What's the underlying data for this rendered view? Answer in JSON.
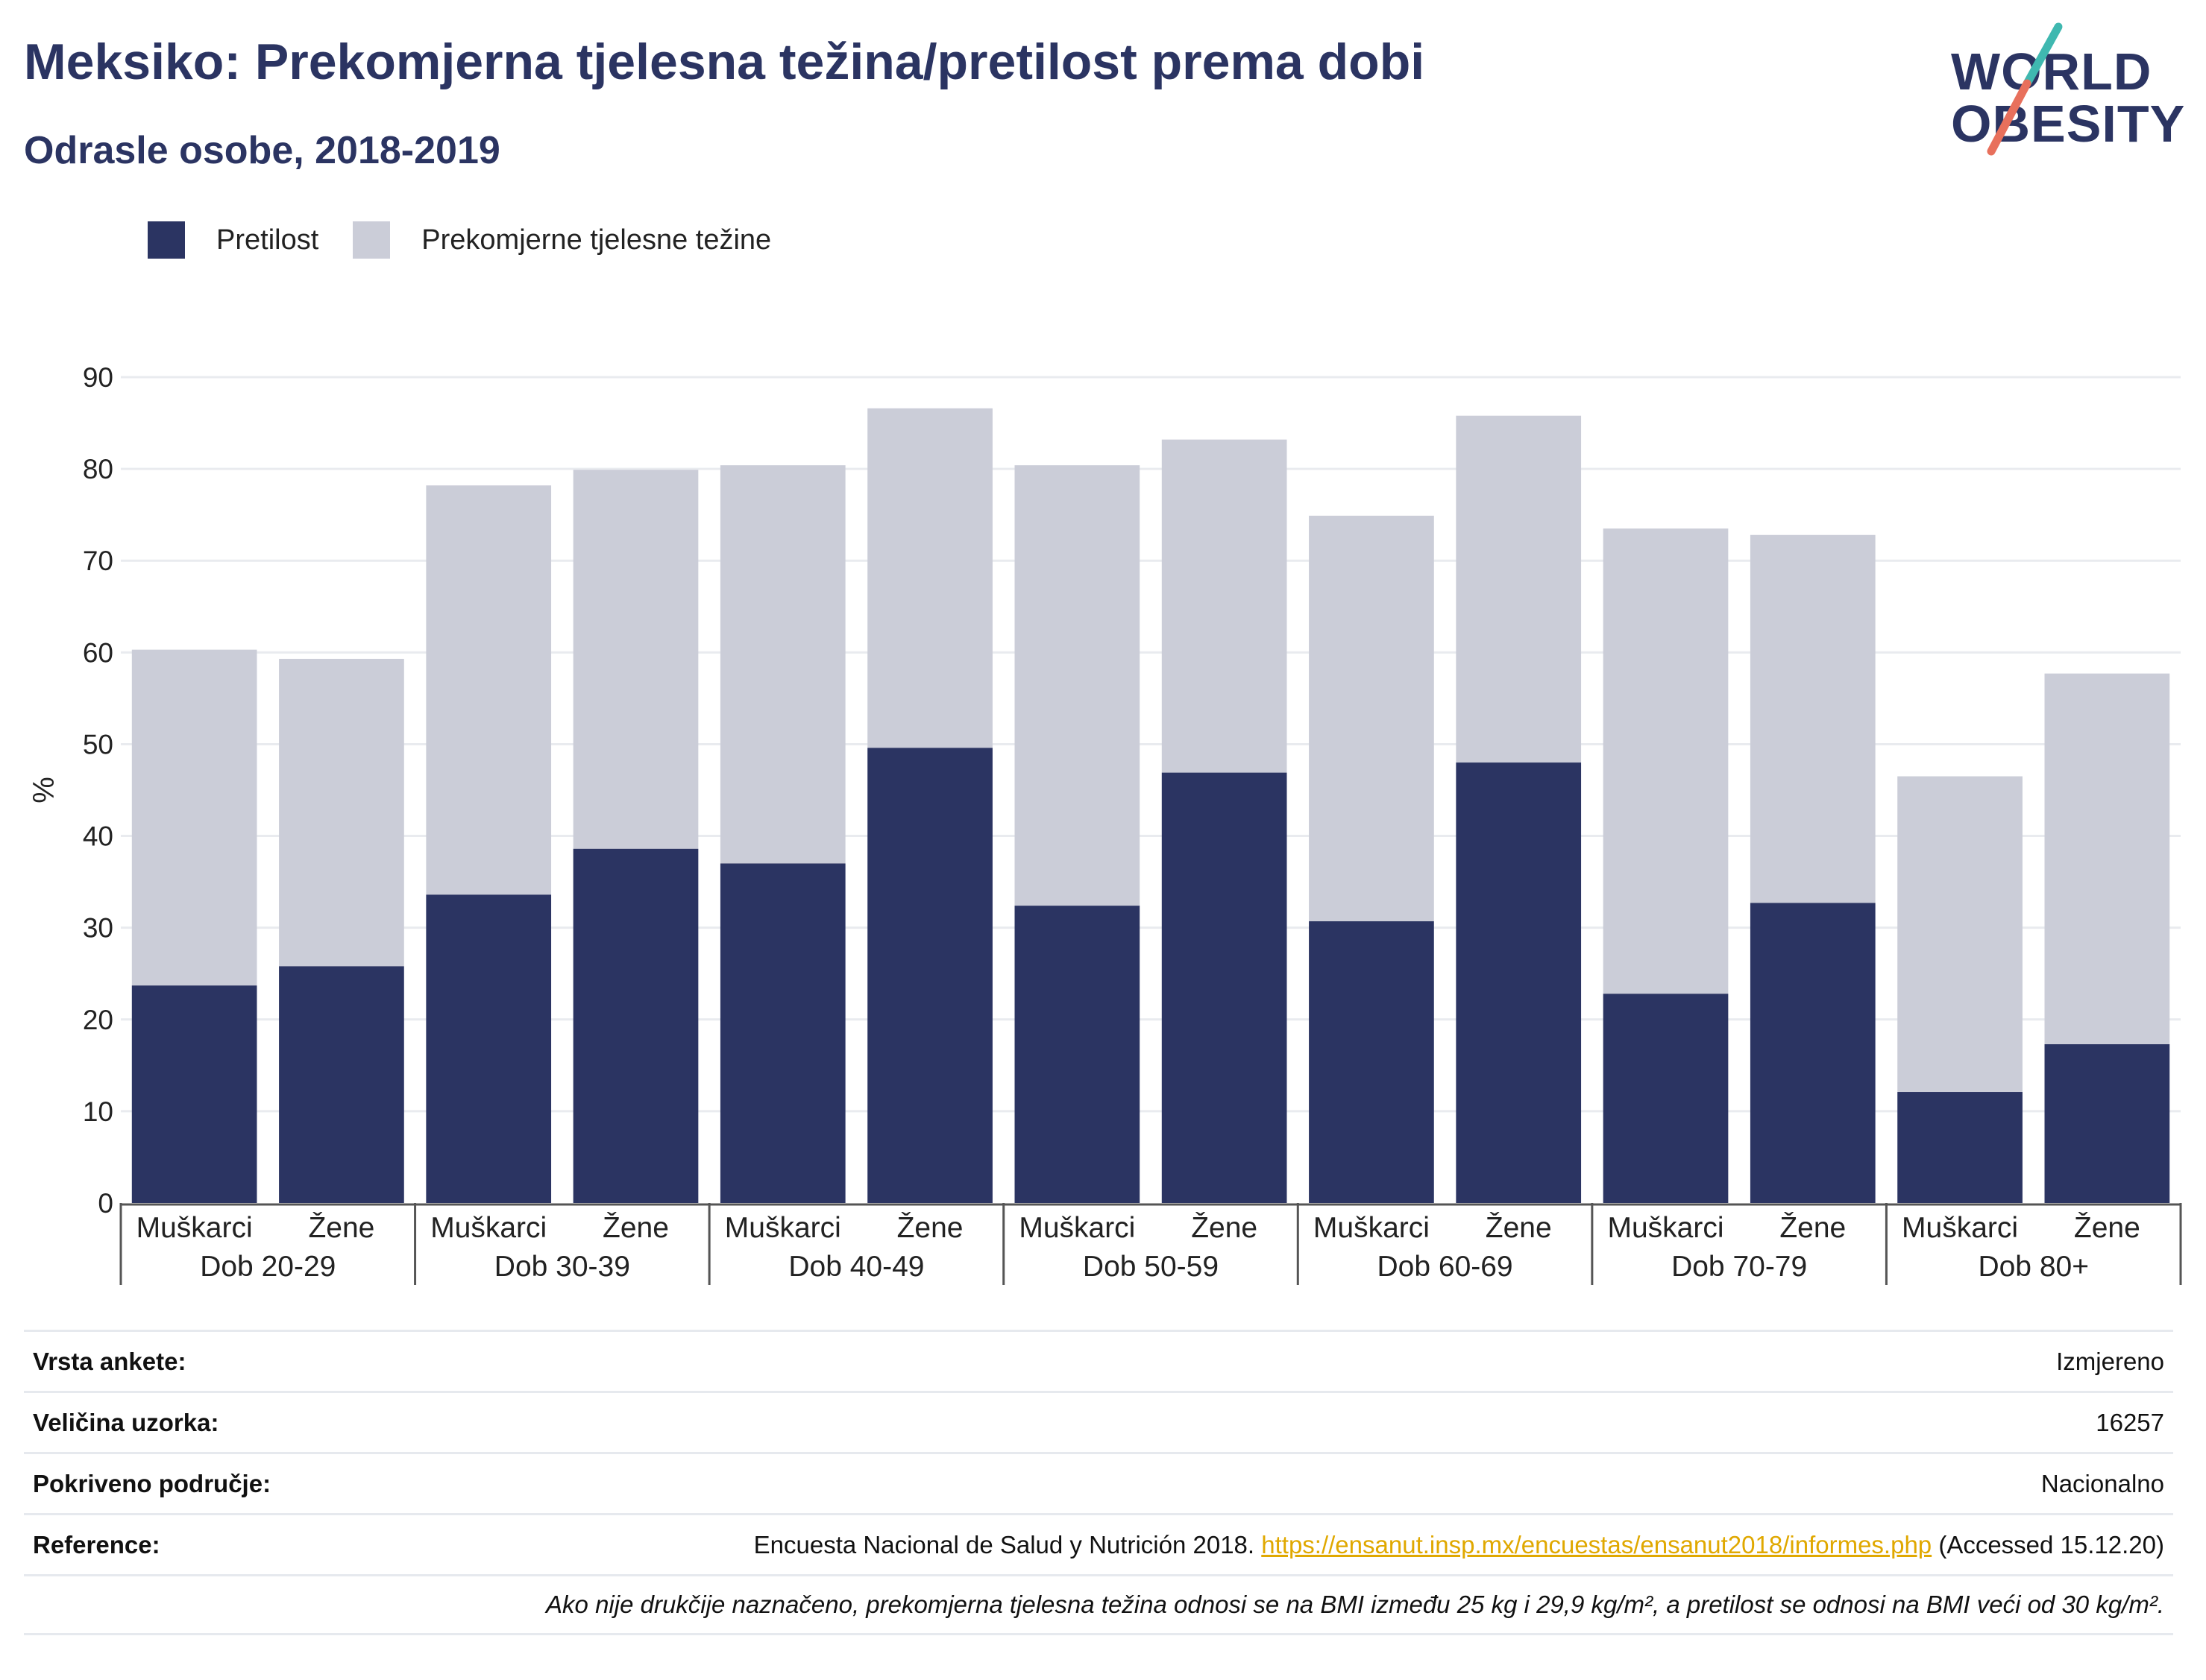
{
  "title": "Meksiko: Prekomjerna tjelesna težina/pretilost prema dobi",
  "subtitle": "Odrasle osobe, 2018-2019",
  "logo": {
    "line1": "WORLD",
    "line2": "OBESITY"
  },
  "legend": {
    "obesity": "Pretilost",
    "overweight": "Prekomjerne tjelesne težine"
  },
  "colors": {
    "obesity": "#2b3462",
    "overweight": "#cbcdd8",
    "title": "#2b3462",
    "link": "#e0a800",
    "logo_teal": "#3fb8b0",
    "logo_coral": "#e8705c"
  },
  "chart_data": {
    "type": "bar",
    "stacked": true,
    "ylabel": "%",
    "ylim": [
      0,
      90
    ],
    "yticks": [
      0,
      10,
      20,
      30,
      40,
      50,
      60,
      70,
      80,
      90
    ],
    "grid": true,
    "legend_position": "top-left",
    "groups": [
      "Dob 20-29",
      "Dob 30-39",
      "Dob 40-49",
      "Dob 50-59",
      "Dob 60-69",
      "Dob 70-79",
      "Dob 80+"
    ],
    "subcategories": [
      "Muškarci",
      "Žene"
    ],
    "series": [
      {
        "name": "Pretilost",
        "values": [
          23.7,
          25.8,
          33.6,
          38.6,
          37.0,
          49.6,
          32.4,
          46.9,
          30.7,
          48.0,
          22.8,
          32.7,
          12.1,
          17.3
        ]
      },
      {
        "name": "Prekomjerne tjelesne težine",
        "values": [
          36.6,
          33.5,
          44.6,
          41.3,
          43.4,
          37.0,
          48.0,
          36.3,
          44.2,
          37.8,
          50.7,
          40.1,
          34.4,
          40.4
        ]
      }
    ]
  },
  "info": {
    "survey_type_label": "Vrsta ankete:",
    "survey_type_value": "Izmjereno",
    "sample_size_label": "Veličina uzorka:",
    "sample_size_value": "16257",
    "coverage_label": "Pokriveno područje:",
    "coverage_value": "Nacionalno",
    "references_label": "Reference:",
    "references_text": "Encuesta Nacional de Salud y Nutrición 2018.",
    "references_link": "https://ensanut.insp.mx/encuestas/ensanut2018/informes.php",
    "references_accessed": "(Accessed 15.12.20)",
    "note": "Ako nije drukčije naznačeno, prekomjerna tjelesna težina odnosi se na BMI između 25 kg i 29,9 kg/m², a pretilost se odnosi na BMI veći od 30 kg/m²."
  }
}
